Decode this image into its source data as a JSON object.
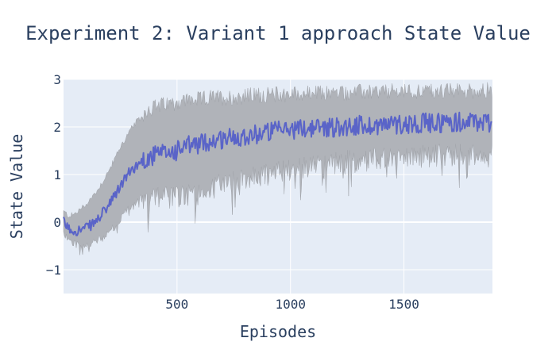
{
  "chart_data": {
    "type": "line",
    "title": "Experiment 2: Variant 1 approach State Value",
    "xlabel": "Episodes",
    "ylabel": "State Value",
    "xlim": [
      0,
      1890
    ],
    "ylim": [
      -1.5,
      3
    ],
    "xticks": [
      500,
      1000,
      1500
    ],
    "yticks": [
      -1,
      0,
      1,
      2,
      3
    ],
    "ytick_labels": [
      "−1",
      "0",
      "1",
      "2",
      "3"
    ],
    "grid": true,
    "legend": "none",
    "colors": {
      "plot_bg": "#e5ecf6",
      "mean_line": "#5a64c8",
      "band": "#b0b3b9",
      "band_edge": "#9fa2a8"
    },
    "series": [
      {
        "role": "mean",
        "x": [
          0,
          25,
          50,
          75,
          100,
          125,
          150,
          175,
          200,
          225,
          250,
          275,
          300,
          325,
          350,
          375,
          400,
          450,
          500,
          550,
          600,
          650,
          700,
          750,
          800,
          850,
          900,
          950,
          1000,
          1050,
          1100,
          1150,
          1200,
          1250,
          1300,
          1350,
          1400,
          1450,
          1500,
          1550,
          1600,
          1650,
          1700,
          1750,
          1800,
          1850,
          1890
        ],
        "values": [
          0.0,
          -0.15,
          -0.18,
          -0.16,
          -0.12,
          -0.05,
          0.05,
          0.2,
          0.35,
          0.55,
          0.75,
          0.95,
          1.1,
          1.2,
          1.3,
          1.35,
          1.4,
          1.45,
          1.5,
          1.6,
          1.65,
          1.7,
          1.75,
          1.8,
          1.82,
          1.85,
          1.9,
          1.92,
          1.95,
          1.97,
          1.98,
          2.0,
          2.0,
          2.02,
          2.03,
          2.03,
          2.05,
          2.05,
          2.07,
          2.08,
          2.08,
          2.09,
          2.1,
          2.1,
          2.1,
          2.1,
          2.1
        ]
      },
      {
        "role": "band-upper",
        "x": [
          0,
          25,
          50,
          75,
          100,
          125,
          150,
          175,
          200,
          225,
          250,
          275,
          300,
          325,
          350,
          375,
          400,
          450,
          500,
          550,
          600,
          650,
          700,
          750,
          800,
          850,
          900,
          950,
          1000,
          1050,
          1100,
          1150,
          1200,
          1250,
          1300,
          1350,
          1400,
          1450,
          1500,
          1550,
          1600,
          1650,
          1700,
          1750,
          1800,
          1850,
          1890
        ],
        "values": [
          0.2,
          0.1,
          0.15,
          0.25,
          0.35,
          0.5,
          0.65,
          0.85,
          1.05,
          1.3,
          1.55,
          1.75,
          1.95,
          2.1,
          2.2,
          2.3,
          2.35,
          2.4,
          2.45,
          2.5,
          2.5,
          2.55,
          2.55,
          2.55,
          2.58,
          2.6,
          2.6,
          2.62,
          2.62,
          2.63,
          2.63,
          2.64,
          2.65,
          2.65,
          2.66,
          2.66,
          2.66,
          2.67,
          2.67,
          2.68,
          2.68,
          2.68,
          2.68,
          2.69,
          2.69,
          2.7,
          2.7
        ]
      },
      {
        "role": "band-lower",
        "x": [
          0,
          25,
          50,
          75,
          100,
          125,
          150,
          175,
          200,
          225,
          250,
          275,
          300,
          325,
          350,
          375,
          400,
          450,
          500,
          550,
          600,
          650,
          700,
          750,
          800,
          850,
          900,
          950,
          1000,
          1050,
          1100,
          1150,
          1200,
          1250,
          1300,
          1350,
          1400,
          1450,
          1500,
          1550,
          1600,
          1650,
          1700,
          1750,
          1800,
          1850,
          1890
        ],
        "values": [
          -0.2,
          -0.35,
          -0.42,
          -0.45,
          -0.45,
          -0.4,
          -0.35,
          -0.3,
          -0.2,
          -0.05,
          0.1,
          0.25,
          0.4,
          0.5,
          0.55,
          0.6,
          0.6,
          0.6,
          0.6,
          0.65,
          0.7,
          0.8,
          0.9,
          0.95,
          1.0,
          1.05,
          1.1,
          1.15,
          1.2,
          1.25,
          1.28,
          1.3,
          1.35,
          1.37,
          1.38,
          1.4,
          1.42,
          1.43,
          1.45,
          1.47,
          1.48,
          1.5,
          1.5,
          1.5,
          1.52,
          1.52,
          1.52
        ]
      }
    ]
  }
}
